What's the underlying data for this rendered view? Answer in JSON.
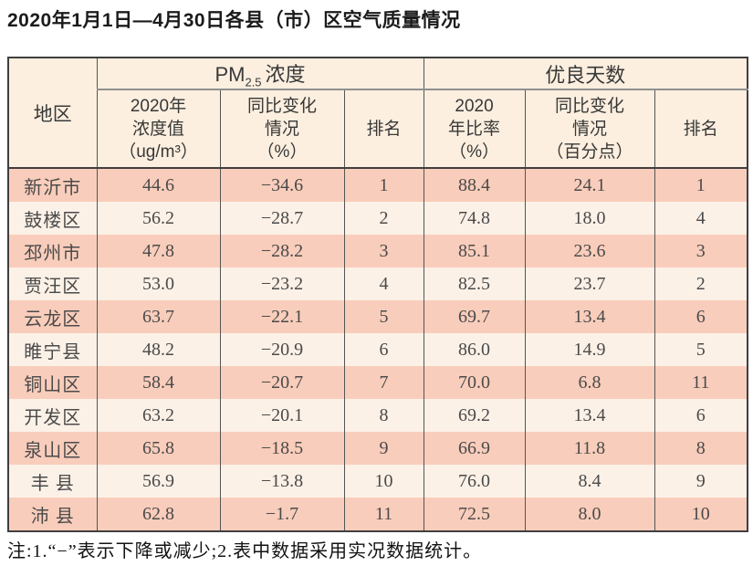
{
  "title": "2020年1月1日—4月30日各县（市）区空气质量情况",
  "note": "注:1.“−”表示下降或减少;2.表中数据采用实况数据统计。",
  "colors": {
    "row_salmon": "#f9cdbb",
    "row_cream": "#fcf1e7",
    "header_bg": "#fcefdf",
    "border_dark": "#3f3f3f",
    "rule_gray": "#8f8f8f",
    "text_body": "#4a4a4a"
  },
  "table": {
    "region_header": "地区",
    "pm_group": {
      "prefix": "PM",
      "sub": "2.5",
      "suffix": "浓度"
    },
    "good_days_header": "优良天数",
    "sub_headers": [
      "2020年\n浓度值\n（ug/m³）",
      "同比变化\n情况\n（%）",
      "排名",
      "2020\n年比率\n（%）",
      "同比变化\n情况\n（百分点）",
      "排名"
    ],
    "rows": [
      {
        "region": "新沂市",
        "values": [
          "44.6",
          "−34.6",
          "1",
          "88.4",
          "24.1",
          "1"
        ]
      },
      {
        "region": "鼓楼区",
        "values": [
          "56.2",
          "−28.7",
          "2",
          "74.8",
          "18.0",
          "4"
        ]
      },
      {
        "region": "邳州市",
        "values": [
          "47.8",
          "−28.2",
          "3",
          "85.1",
          "23.6",
          "3"
        ]
      },
      {
        "region": "贾汪区",
        "values": [
          "53.0",
          "−23.2",
          "4",
          "82.5",
          "23.7",
          "2"
        ]
      },
      {
        "region": "云龙区",
        "values": [
          "63.7",
          "−22.1",
          "5",
          "69.7",
          "13.4",
          "6"
        ]
      },
      {
        "region": "睢宁县",
        "values": [
          "48.2",
          "−20.9",
          "6",
          "86.0",
          "14.9",
          "5"
        ]
      },
      {
        "region": "铜山区",
        "values": [
          "58.4",
          "−20.7",
          "7",
          "70.0",
          "6.8",
          "11"
        ]
      },
      {
        "region": "开发区",
        "values": [
          "63.2",
          "−20.1",
          "8",
          "69.2",
          "13.4",
          "6"
        ]
      },
      {
        "region": "泉山区",
        "values": [
          "65.8",
          "−18.5",
          "9",
          "66.9",
          "11.8",
          "8"
        ]
      },
      {
        "region": "丰 县",
        "values": [
          "56.9",
          "−13.8",
          "10",
          "76.0",
          "8.4",
          "9"
        ]
      },
      {
        "region": "沛 县",
        "values": [
          "62.8",
          "−1.7",
          "11",
          "72.5",
          "8.0",
          "10"
        ]
      }
    ]
  },
  "chart_data": {
    "type": "table",
    "title": "2020年1月1日—4月30日各县（市）区空气质量情况",
    "columns": [
      "地区",
      "PM2.5浓度 2020年浓度值(ug/m³)",
      "PM2.5浓度 同比变化情况(%)",
      "PM2.5浓度 排名",
      "优良天数 2020年比率(%)",
      "优良天数 同比变化情况(百分点)",
      "优良天数 排名"
    ],
    "rows": [
      [
        "新沂市",
        44.6,
        -34.6,
        1,
        88.4,
        24.1,
        1
      ],
      [
        "鼓楼区",
        56.2,
        -28.7,
        2,
        74.8,
        18.0,
        4
      ],
      [
        "邳州市",
        47.8,
        -28.2,
        3,
        85.1,
        23.6,
        3
      ],
      [
        "贾汪区",
        53.0,
        -23.2,
        4,
        82.5,
        23.7,
        2
      ],
      [
        "云龙区",
        63.7,
        -22.1,
        5,
        69.7,
        13.4,
        6
      ],
      [
        "睢宁县",
        48.2,
        -20.9,
        6,
        86.0,
        14.9,
        5
      ],
      [
        "铜山区",
        58.4,
        -20.7,
        7,
        70.0,
        6.8,
        11
      ],
      [
        "开发区",
        63.2,
        -20.1,
        8,
        69.2,
        13.4,
        6
      ],
      [
        "泉山区",
        65.8,
        -18.5,
        9,
        66.9,
        11.8,
        8
      ],
      [
        "丰县",
        56.9,
        -13.8,
        10,
        76.0,
        8.4,
        9
      ],
      [
        "沛县",
        62.8,
        -1.7,
        11,
        72.5,
        8.0,
        10
      ]
    ],
    "note": "注:1.“−”表示下降或减少;2.表中数据采用实况数据统计。"
  }
}
